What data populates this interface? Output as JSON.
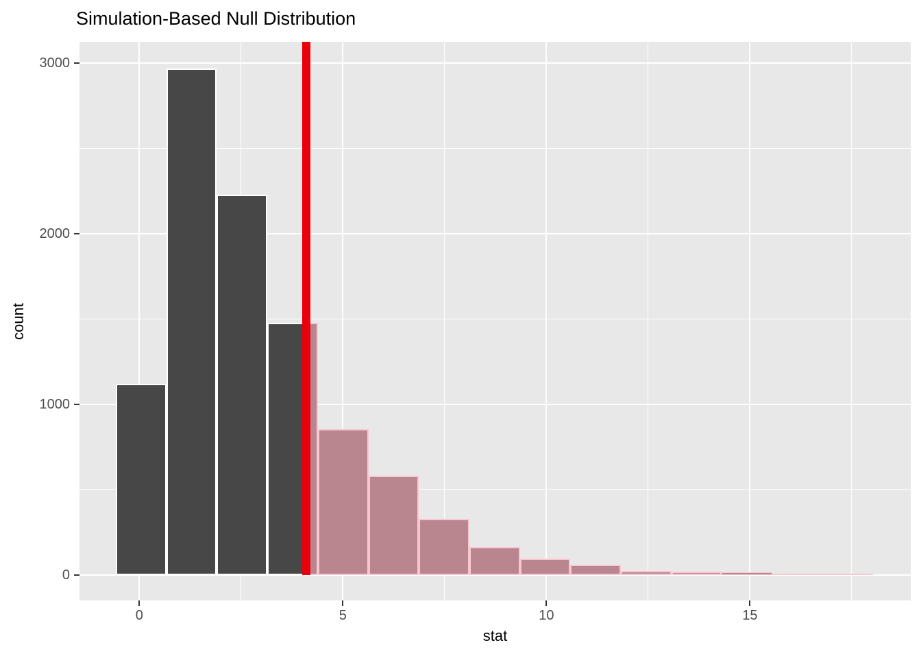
{
  "chart_data": {
    "type": "bar",
    "subtype": "histogram",
    "title": "Simulation-Based Null Distribution",
    "xlabel": "stat",
    "ylabel": "count",
    "x_domain": [
      -1.47,
      18.95
    ],
    "y_domain": [
      -150,
      3125
    ],
    "x_ticks": [
      0,
      5,
      10,
      15
    ],
    "x_minor_ticks": [
      2.5,
      7.5,
      12.5,
      17.5
    ],
    "y_ticks": [
      0,
      1000,
      2000,
      3000
    ],
    "y_minor_ticks": [
      500,
      1500,
      2500
    ],
    "obs_stat": 4.1,
    "bin_width": 1.24,
    "bins": [
      {
        "x0": -0.58,
        "x1": 0.66,
        "count": 1120
      },
      {
        "x0": 0.66,
        "x1": 1.9,
        "count": 2970
      },
      {
        "x0": 1.9,
        "x1": 3.15,
        "count": 2230
      },
      {
        "x0": 3.15,
        "x1": 4.39,
        "count": 1478
      },
      {
        "x0": 4.39,
        "x1": 5.63,
        "count": 855
      },
      {
        "x0": 5.63,
        "x1": 6.87,
        "count": 580
      },
      {
        "x0": 6.87,
        "x1": 8.11,
        "count": 328
      },
      {
        "x0": 8.11,
        "x1": 9.35,
        "count": 162
      },
      {
        "x0": 9.35,
        "x1": 10.59,
        "count": 95
      },
      {
        "x0": 10.59,
        "x1": 11.83,
        "count": 58
      },
      {
        "x0": 11.83,
        "x1": 13.07,
        "count": 22
      },
      {
        "x0": 13.07,
        "x1": 14.31,
        "count": 19
      },
      {
        "x0": 14.31,
        "x1": 15.55,
        "count": 14
      },
      {
        "x0": 15.55,
        "x1": 16.79,
        "count": 4
      },
      {
        "x0": 16.79,
        "x1": 18.03,
        "count": 3
      }
    ],
    "colors": {
      "null_fill": "#474747",
      "null_border": "#ffffff",
      "pvalue_fill": "#b9858f",
      "pvalue_border": "#f9c6d2",
      "obs_line": "#e8000a",
      "panel_bg": "#e8e8e8",
      "grid": "#ffffff",
      "tick_text": "#4d4d4d",
      "axis_text": "#000000"
    }
  }
}
